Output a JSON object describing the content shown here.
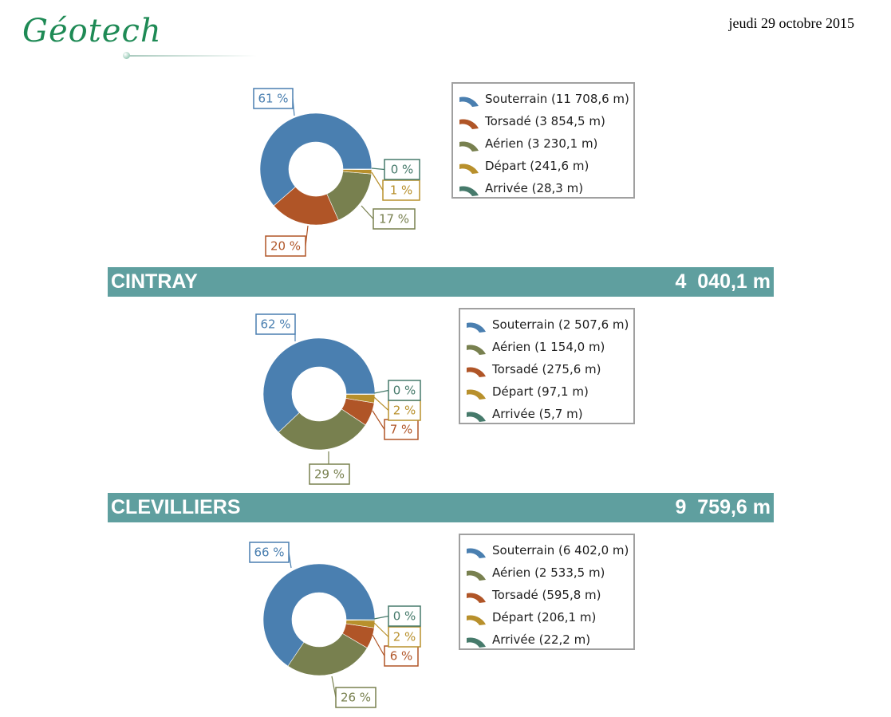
{
  "header": {
    "logo_text": "Géotech",
    "date": "jeudi 29 octobre 2015"
  },
  "sections": [
    {
      "name": "",
      "total": ""
    },
    {
      "name": "CINTRAY",
      "total": "4  040,1 m"
    },
    {
      "name": "CLEVILLIERS",
      "total": "9  759,6 m"
    }
  ],
  "colors": {
    "Souterrain": "#4a7fb0",
    "Torsadé": "#b05527",
    "Aérien": "#78804f",
    "Départ": "#b8902c",
    "Arrivée": "#467a6b",
    "section_bar": "#5f9f9f"
  },
  "chart_data": [
    {
      "type": "pie",
      "title": "",
      "series": [
        {
          "name": "Souterrain",
          "legend": "Souterrain (11 708,6 m)",
          "value": 11708.6,
          "label": "61 %"
        },
        {
          "name": "Torsadé",
          "legend": "Torsadé (3 854,5 m)",
          "value": 3854.5,
          "label": "20 %"
        },
        {
          "name": "Aérien",
          "legend": "Aérien (3 230,1 m)",
          "value": 3230.1,
          "label": "17 %"
        },
        {
          "name": "Départ",
          "legend": "Départ (241,6 m)",
          "value": 241.6,
          "label": "1 %"
        },
        {
          "name": "Arrivée",
          "legend": "Arrivée (28,3 m)",
          "value": 28.3,
          "label": "0 %"
        }
      ]
    },
    {
      "type": "pie",
      "title": "CINTRAY",
      "series": [
        {
          "name": "Souterrain",
          "legend": "Souterrain (2 507,6 m)",
          "value": 2507.6,
          "label": "62 %"
        },
        {
          "name": "Aérien",
          "legend": "Aérien (1 154,0 m)",
          "value": 1154.0,
          "label": "29 %"
        },
        {
          "name": "Torsadé",
          "legend": "Torsadé (275,6 m)",
          "value": 275.6,
          "label": "7 %"
        },
        {
          "name": "Départ",
          "legend": "Départ (97,1 m)",
          "value": 97.1,
          "label": "2 %"
        },
        {
          "name": "Arrivée",
          "legend": "Arrivée (5,7 m)",
          "value": 5.7,
          "label": "0 %"
        }
      ]
    },
    {
      "type": "pie",
      "title": "CLEVILLIERS",
      "series": [
        {
          "name": "Souterrain",
          "legend": "Souterrain (6 402,0 m)",
          "value": 6402.0,
          "label": "66 %"
        },
        {
          "name": "Aérien",
          "legend": "Aérien (2 533,5 m)",
          "value": 2533.5,
          "label": "26 %"
        },
        {
          "name": "Torsadé",
          "legend": "Torsadé (595,8 m)",
          "value": 595.8,
          "label": "6 %"
        },
        {
          "name": "Départ",
          "legend": "Départ (206,1 m)",
          "value": 206.1,
          "label": "2 %"
        },
        {
          "name": "Arrivée",
          "legend": "Arrivée (22,2 m)",
          "value": 22.2,
          "label": "0 %"
        }
      ]
    }
  ]
}
